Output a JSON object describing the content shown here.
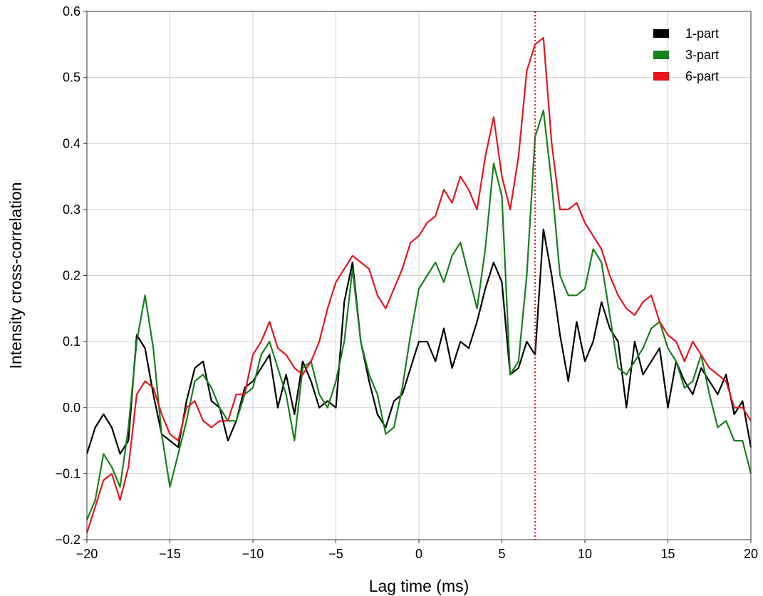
{
  "chart_data": {
    "type": "line",
    "xlabel": "Lag time (ms)",
    "ylabel": "Intensity cross-correlation",
    "xlim": [
      -20,
      20
    ],
    "ylim": [
      -0.2,
      0.6
    ],
    "grid": true,
    "legend_position": "top-right",
    "x_ticks": [
      -20,
      -15,
      -10,
      -5,
      0,
      5,
      10,
      15,
      20
    ],
    "x_tick_labels": [
      "−20",
      "−15",
      "−10",
      "−5",
      "0",
      "5",
      "10",
      "15",
      "20"
    ],
    "y_ticks": [
      -0.2,
      -0.1,
      0.0,
      0.1,
      0.2,
      0.3,
      0.4,
      0.5,
      0.6
    ],
    "y_tick_labels": [
      "−0.2",
      "−0.1",
      "0.0",
      "0.1",
      "0.2",
      "0.3",
      "0.4",
      "0.5",
      "0.6"
    ],
    "vertical_line": {
      "x": 7.0,
      "color": "#e8141c",
      "style": "dotted"
    },
    "series": [
      {
        "name": "1-part",
        "color": "#000000",
        "x": [
          -20,
          -19.5,
          -19,
          -18.5,
          -18,
          -17.5,
          -17,
          -16.5,
          -16,
          -15.5,
          -15,
          -14.5,
          -14,
          -13.5,
          -13,
          -12.5,
          -12,
          -11.5,
          -11,
          -10.5,
          -10,
          -9.5,
          -9,
          -8.5,
          -8,
          -7.5,
          -7,
          -6.5,
          -6,
          -5.5,
          -5,
          -4.5,
          -4,
          -3.5,
          -3,
          -2.5,
          -2,
          -1.5,
          -1,
          -0.5,
          0,
          0.5,
          1,
          1.5,
          2,
          2.5,
          3,
          3.5,
          4,
          4.5,
          5,
          5.5,
          6,
          6.5,
          7,
          7.5,
          8,
          8.5,
          9,
          9.5,
          10,
          10.5,
          11,
          11.5,
          12,
          12.5,
          13,
          13.5,
          14,
          14.5,
          15,
          15.5,
          16,
          16.5,
          17,
          17.5,
          18,
          18.5,
          19,
          19.5,
          20
        ],
        "values": [
          -0.07,
          -0.03,
          -0.01,
          -0.03,
          -0.07,
          -0.05,
          0.11,
          0.09,
          0.02,
          -0.04,
          -0.05,
          -0.06,
          0.01,
          0.06,
          0.07,
          0.01,
          0.0,
          -0.05,
          -0.02,
          0.03,
          0.04,
          0.06,
          0.08,
          0.0,
          0.05,
          -0.01,
          0.07,
          0.04,
          0.0,
          0.01,
          0.0,
          0.16,
          0.22,
          0.1,
          0.04,
          -0.01,
          -0.03,
          0.01,
          0.02,
          0.06,
          0.1,
          0.1,
          0.07,
          0.12,
          0.06,
          0.1,
          0.09,
          0.13,
          0.18,
          0.22,
          0.19,
          0.05,
          0.06,
          0.1,
          0.08,
          0.27,
          0.2,
          0.11,
          0.04,
          0.13,
          0.07,
          0.1,
          0.16,
          0.12,
          0.1,
          0.0,
          0.1,
          0.05,
          0.07,
          0.09,
          0.0,
          0.07,
          0.04,
          0.02,
          0.06,
          0.04,
          0.02,
          0.05,
          -0.01,
          0.01,
          -0.06
        ]
      },
      {
        "name": "3-part",
        "color": "#17801a",
        "x": [
          -20,
          -19.5,
          -19,
          -18.5,
          -18,
          -17.5,
          -17,
          -16.5,
          -16,
          -15.5,
          -15,
          -14.5,
          -14,
          -13.5,
          -13,
          -12.5,
          -12,
          -11.5,
          -11,
          -10.5,
          -10,
          -9.5,
          -9,
          -8.5,
          -8,
          -7.5,
          -7,
          -6.5,
          -6,
          -5.5,
          -5,
          -4.5,
          -4,
          -3.5,
          -3,
          -2.5,
          -2,
          -1.5,
          -1,
          -0.5,
          0,
          0.5,
          1,
          1.5,
          2,
          2.5,
          3,
          3.5,
          4,
          4.5,
          5,
          5.5,
          6,
          6.5,
          7,
          7.5,
          8,
          8.5,
          9,
          9.5,
          10,
          10.5,
          11,
          11.5,
          12,
          12.5,
          13,
          13.5,
          14,
          14.5,
          15,
          15.5,
          16,
          16.5,
          17,
          17.5,
          18,
          18.5,
          19,
          19.5,
          20
        ],
        "values": [
          -0.17,
          -0.14,
          -0.07,
          -0.09,
          -0.12,
          -0.03,
          0.1,
          0.17,
          0.09,
          -0.04,
          -0.12,
          -0.07,
          -0.02,
          0.04,
          0.05,
          0.03,
          0.0,
          -0.02,
          -0.02,
          0.02,
          0.03,
          0.08,
          0.1,
          0.06,
          0.02,
          -0.05,
          0.06,
          0.07,
          0.02,
          0.0,
          0.04,
          0.1,
          0.21,
          0.1,
          0.05,
          0.02,
          -0.04,
          -0.03,
          0.03,
          0.11,
          0.18,
          0.2,
          0.22,
          0.19,
          0.23,
          0.25,
          0.2,
          0.15,
          0.24,
          0.37,
          0.32,
          0.05,
          0.07,
          0.2,
          0.41,
          0.45,
          0.34,
          0.2,
          0.17,
          0.17,
          0.18,
          0.24,
          0.22,
          0.14,
          0.06,
          0.05,
          0.07,
          0.09,
          0.12,
          0.13,
          0.09,
          0.07,
          0.03,
          0.04,
          0.08,
          0.02,
          -0.03,
          -0.02,
          -0.05,
          -0.05,
          -0.1
        ]
      },
      {
        "name": "6-part",
        "color": "#e8141c",
        "x": [
          -20,
          -19.5,
          -19,
          -18.5,
          -18,
          -17.5,
          -17,
          -16.5,
          -16,
          -15.5,
          -15,
          -14.5,
          -14,
          -13.5,
          -13,
          -12.5,
          -12,
          -11.5,
          -11,
          -10.5,
          -10,
          -9.5,
          -9,
          -8.5,
          -8,
          -7.5,
          -7,
          -6.5,
          -6,
          -5.5,
          -5,
          -4.5,
          -4,
          -3.5,
          -3,
          -2.5,
          -2,
          -1.5,
          -1,
          -0.5,
          0,
          0.5,
          1,
          1.5,
          2,
          2.5,
          3,
          3.5,
          4,
          4.5,
          5,
          5.5,
          6,
          6.5,
          7,
          7.5,
          8,
          8.5,
          9,
          9.5,
          10,
          10.5,
          11,
          11.5,
          12,
          12.5,
          13,
          13.5,
          14,
          14.5,
          15,
          15.5,
          16,
          16.5,
          17,
          17.5,
          18,
          18.5,
          19,
          19.5,
          20
        ],
        "values": [
          -0.19,
          -0.15,
          -0.11,
          -0.1,
          -0.14,
          -0.09,
          0.02,
          0.04,
          0.03,
          -0.01,
          -0.04,
          -0.05,
          0.0,
          0.01,
          -0.02,
          -0.03,
          -0.02,
          -0.02,
          0.02,
          0.02,
          0.08,
          0.1,
          0.13,
          0.09,
          0.08,
          0.06,
          0.05,
          0.07,
          0.1,
          0.15,
          0.19,
          0.21,
          0.23,
          0.22,
          0.21,
          0.17,
          0.15,
          0.18,
          0.21,
          0.25,
          0.26,
          0.28,
          0.29,
          0.33,
          0.31,
          0.35,
          0.33,
          0.3,
          0.38,
          0.44,
          0.35,
          0.3,
          0.38,
          0.51,
          0.55,
          0.56,
          0.4,
          0.3,
          0.3,
          0.31,
          0.28,
          0.26,
          0.24,
          0.2,
          0.17,
          0.15,
          0.14,
          0.16,
          0.17,
          0.13,
          0.11,
          0.1,
          0.07,
          0.1,
          0.08,
          0.06,
          0.05,
          0.04,
          0.0,
          0.0,
          -0.02
        ]
      }
    ]
  }
}
